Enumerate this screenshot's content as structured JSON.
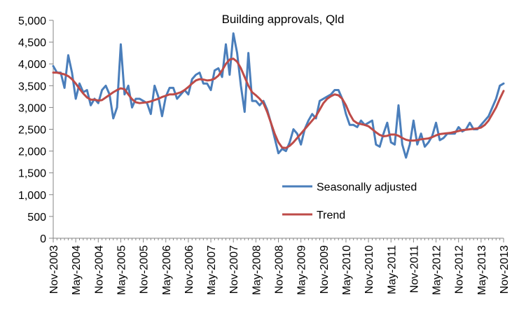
{
  "chart_data": {
    "type": "line",
    "title": "Building approvals, Qld",
    "xlabel": "",
    "ylabel": "",
    "ylim": [
      0,
      5000
    ],
    "yticks": [
      0,
      500,
      1000,
      1500,
      2000,
      2500,
      3000,
      3500,
      4000,
      4500,
      5000
    ],
    "ytick_labels": [
      "0",
      "500",
      "1,000",
      "1,500",
      "2,000",
      "2,500",
      "3,000",
      "3,500",
      "4,000",
      "4,500",
      "5,000"
    ],
    "x_start": "Nov-2003",
    "x_end": "Nov-2013",
    "n_months": 121,
    "x_tick_labels": [
      "Nov-2003",
      "May-2004",
      "Nov-2004",
      "May-2005",
      "Nov-2005",
      "May-2006",
      "Nov-2006",
      "May-2007",
      "Nov-2007",
      "May-2008",
      "Nov-2008",
      "May-2009",
      "Nov-2009",
      "May-2010",
      "Nov-2010",
      "May-2011",
      "Nov-2011",
      "May-2012",
      "Nov-2012",
      "May-2013",
      "Nov-2013"
    ],
    "grid": false,
    "legend_position": "right",
    "colors": {
      "seasonally_adjusted": "#4a7ebb",
      "trend": "#be4b48"
    },
    "series": [
      {
        "name": "Seasonally adjusted",
        "values": [
          3950,
          3800,
          3800,
          3450,
          4200,
          3800,
          3200,
          3550,
          3350,
          3400,
          3050,
          3200,
          3100,
          3400,
          3500,
          3300,
          2750,
          3000,
          4450,
          3300,
          3500,
          3000,
          3200,
          3200,
          3150,
          3100,
          2850,
          3500,
          3250,
          2800,
          3250,
          3450,
          3450,
          3200,
          3300,
          3400,
          3300,
          3650,
          3750,
          3800,
          3550,
          3550,
          3400,
          3850,
          3900,
          3700,
          4450,
          3750,
          4700,
          4250,
          3500,
          2900,
          4250,
          3150,
          3150,
          3050,
          3150,
          2950,
          2650,
          2300,
          1950,
          2050,
          2000,
          2200,
          2500,
          2400,
          2150,
          2500,
          2700,
          2850,
          2750,
          3150,
          3200,
          3250,
          3300,
          3400,
          3400,
          3200,
          2850,
          2600,
          2600,
          2550,
          2700,
          2600,
          2650,
          2700,
          2150,
          2100,
          2400,
          2650,
          2200,
          2150,
          3050,
          2150,
          1850,
          2150,
          2700,
          2150,
          2400,
          2100,
          2200,
          2350,
          2650,
          2250,
          2300,
          2400,
          2400,
          2400,
          2550,
          2450,
          2500,
          2650,
          2500,
          2500,
          2600,
          2700,
          2800,
          3000,
          3200,
          3500,
          3550
        ]
      },
      {
        "name": "Trend",
        "values": [
          3800,
          3800,
          3780,
          3760,
          3720,
          3650,
          3550,
          3430,
          3320,
          3230,
          3180,
          3180,
          3160,
          3170,
          3230,
          3290,
          3350,
          3400,
          3440,
          3420,
          3300,
          3190,
          3120,
          3100,
          3110,
          3120,
          3140,
          3170,
          3200,
          3240,
          3270,
          3300,
          3300,
          3320,
          3350,
          3400,
          3470,
          3550,
          3620,
          3650,
          3640,
          3620,
          3630,
          3660,
          3730,
          3850,
          4000,
          4100,
          4120,
          4050,
          3900,
          3700,
          3500,
          3350,
          3280,
          3200,
          3100,
          2900,
          2650,
          2400,
          2200,
          2080,
          2070,
          2120,
          2200,
          2300,
          2400,
          2500,
          2600,
          2700,
          2800,
          2950,
          3100,
          3200,
          3260,
          3300,
          3280,
          3200,
          3050,
          2850,
          2700,
          2640,
          2620,
          2600,
          2570,
          2500,
          2430,
          2370,
          2340,
          2350,
          2380,
          2380,
          2350,
          2300,
          2260,
          2240,
          2240,
          2250,
          2270,
          2280,
          2290,
          2320,
          2360,
          2390,
          2400,
          2410,
          2420,
          2440,
          2460,
          2480,
          2490,
          2500,
          2510,
          2520,
          2540,
          2600,
          2700,
          2850,
          3000,
          3200,
          3380
        ]
      }
    ]
  }
}
